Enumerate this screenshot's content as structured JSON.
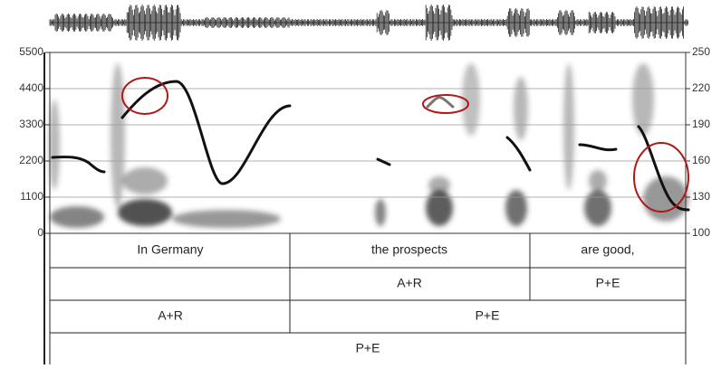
{
  "axes": {
    "left_ticks": [
      0,
      1100,
      2200,
      3300,
      4400,
      5500
    ],
    "right_ticks": [
      100,
      130,
      160,
      190,
      220,
      250
    ]
  },
  "tiers": [
    {
      "labels": [
        "In Germany",
        "the prospects",
        "are good,"
      ]
    },
    {
      "labels": [
        "A+R",
        "P+E"
      ]
    },
    {
      "labels": [
        "A+R",
        "P+E"
      ]
    },
    {
      "labels": [
        "P+E"
      ]
    }
  ]
}
